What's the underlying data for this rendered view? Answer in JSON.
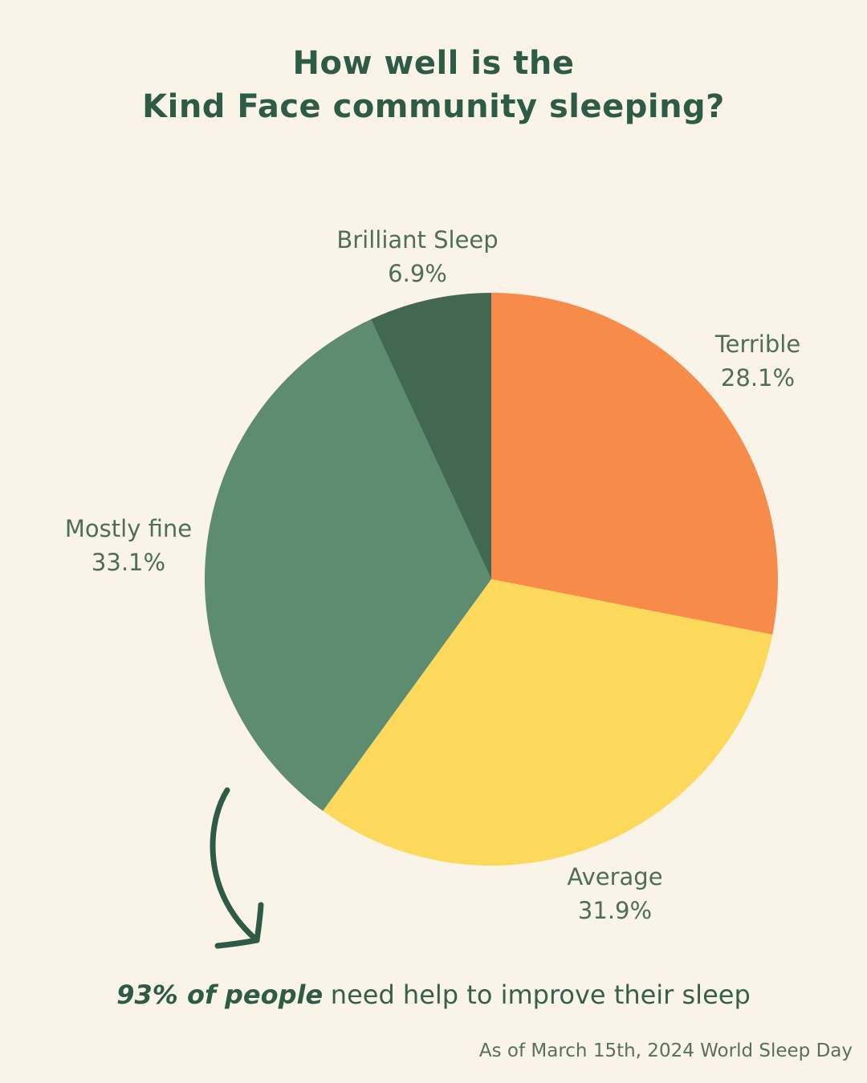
{
  "page": {
    "background": "#FAF4E8",
    "title_line1": "How well is the",
    "title_line2": "Kind Face community sleeping?",
    "statement": {
      "highlight": "93% of people",
      "rest": "need help to improve their sleep"
    },
    "footnote": "As of March 15th, 2024 World Sleep Day"
  },
  "colors": {
    "background": "#FAF4E8",
    "title_text": "#2E5B46",
    "label_text": "#4E6E5C",
    "footnote_text": "#57705F",
    "arrow": "#2E5B46"
  },
  "chart_data": {
    "type": "pie",
    "title": "How well is the Kind Face community sleeping?",
    "unit": "%",
    "start_angle": "12 o'clock",
    "direction": "clockwise",
    "legend_position": "labels-around-pie",
    "slices": [
      {
        "label": "Terrible",
        "value": 28.1,
        "value_label": "28.1%",
        "color": "#F78C4A"
      },
      {
        "label": "Average",
        "value": 31.9,
        "value_label": "31.9%",
        "color": "#FCD95B"
      },
      {
        "label": "Mostly fine",
        "value": 33.1,
        "value_label": "33.1%",
        "color": "#5D8C70"
      },
      {
        "label": "Brilliant Sleep",
        "value": 6.9,
        "value_label": "6.9%",
        "color": "#426851"
      }
    ]
  }
}
